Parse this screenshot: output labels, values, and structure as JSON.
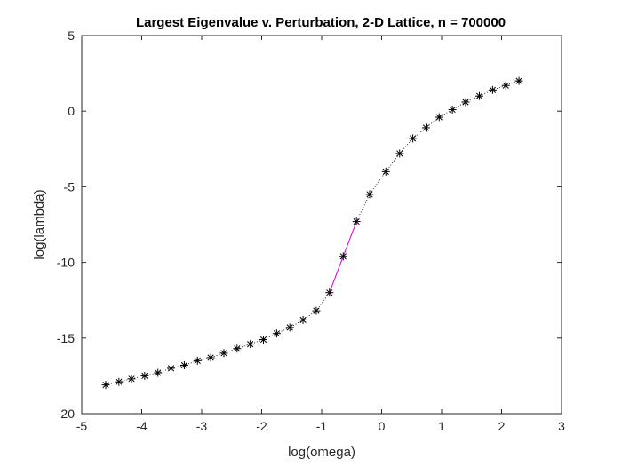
{
  "chart_data": {
    "type": "line",
    "title": "Largest Eigenvalue v. Perturbation, 2-D Lattice, n = 700000",
    "xlabel": "log(omega)",
    "ylabel": "log(lambda)",
    "xlim": [
      -5,
      3
    ],
    "ylim": [
      -20,
      5
    ],
    "xticks": [
      -5,
      -4,
      -3,
      -2,
      -1,
      0,
      1,
      2,
      3
    ],
    "yticks": [
      -20,
      -15,
      -10,
      -5,
      0,
      5
    ],
    "grid": false,
    "legend": "none",
    "series": [
      {
        "marker": "asterisk",
        "line": "dotted",
        "color": "#000000",
        "x": [
          -4.6,
          -4.38,
          -4.17,
          -3.95,
          -3.73,
          -3.51,
          -3.29,
          -3.07,
          -2.85,
          -2.63,
          -2.41,
          -2.19,
          -1.97,
          -1.75,
          -1.53,
          -1.31,
          -1.09,
          -0.87,
          -0.64,
          -0.42,
          -0.2,
          0.07,
          0.3,
          0.52,
          0.74,
          0.96,
          1.18,
          1.4,
          1.63,
          1.85,
          2.07,
          2.29
        ],
        "y": [
          -18.1,
          -17.9,
          -17.7,
          -17.5,
          -17.3,
          -17.0,
          -16.8,
          -16.5,
          -16.3,
          -16.0,
          -15.7,
          -15.4,
          -15.1,
          -14.7,
          -14.3,
          -13.8,
          -13.2,
          -12.0,
          -9.6,
          -7.3,
          -5.5,
          -4.0,
          -2.8,
          -1.8,
          -1.1,
          -0.4,
          0.1,
          0.6,
          1.0,
          1.4,
          1.7,
          2.0
        ]
      }
    ],
    "highlight_segments": [
      {
        "from_x": -0.87,
        "from_y": -12.0,
        "to_x": -0.42,
        "to_y": -7.3,
        "color": "#e000e0",
        "line": "solid"
      }
    ]
  }
}
